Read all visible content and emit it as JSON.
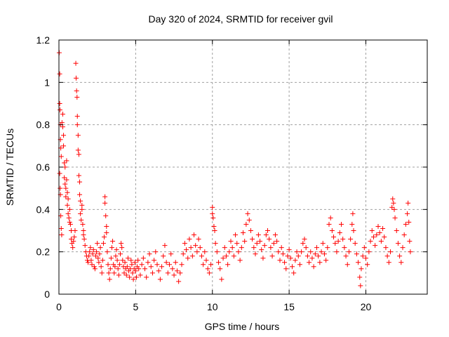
{
  "chart_data": {
    "type": "scatter",
    "title": "Day 320 of 2024, SRMTID for receiver gvil",
    "xlabel": "GPS time / hours",
    "ylabel": "SRMTID / TECUs",
    "xlim": [
      0,
      24
    ],
    "ylim": [
      0,
      1.2
    ],
    "xticks": [
      0,
      5,
      10,
      15,
      20
    ],
    "xtick_labels": [
      "0",
      "5",
      "10",
      "15",
      "20"
    ],
    "yticks": [
      0,
      0.2,
      0.4,
      0.6,
      0.8,
      1.0,
      1.2
    ],
    "ytick_labels": [
      "0",
      "0.2",
      "0.4",
      "0.6",
      "0.8",
      "1",
      "1.2"
    ],
    "grid": true,
    "marker": "+",
    "series": [
      {
        "name": "SRMTID",
        "color": "#ff0000",
        "points": [
          [
            0.02,
            1.14
          ],
          [
            0.05,
            1.04
          ],
          [
            0.05,
            0.9
          ],
          [
            0.07,
            0.87
          ],
          [
            0.1,
            0.8
          ],
          [
            0.1,
            0.73
          ],
          [
            0.12,
            0.69
          ],
          [
            0.15,
            0.65
          ],
          [
            0.05,
            0.57
          ],
          [
            0.08,
            0.5
          ],
          [
            0.1,
            0.47
          ],
          [
            0.12,
            0.37
          ],
          [
            0.15,
            0.31
          ],
          [
            0.18,
            0.28
          ],
          [
            0.2,
            0.81
          ],
          [
            0.25,
            0.85
          ],
          [
            0.25,
            0.79
          ],
          [
            0.3,
            0.75
          ],
          [
            0.3,
            0.7
          ],
          [
            0.35,
            0.62
          ],
          [
            0.35,
            0.55
          ],
          [
            0.4,
            0.6
          ],
          [
            0.4,
            0.52
          ],
          [
            0.45,
            0.5
          ],
          [
            0.45,
            0.46
          ],
          [
            0.5,
            0.54
          ],
          [
            0.5,
            0.63
          ],
          [
            0.55,
            0.48
          ],
          [
            0.55,
            0.42
          ],
          [
            0.6,
            0.45
          ],
          [
            0.6,
            0.38
          ],
          [
            0.65,
            0.36
          ],
          [
            0.7,
            0.34
          ],
          [
            0.7,
            0.4
          ],
          [
            0.75,
            0.33
          ],
          [
            0.8,
            0.3
          ],
          [
            0.8,
            0.26
          ],
          [
            0.85,
            0.24
          ],
          [
            0.9,
            0.22
          ],
          [
            0.95,
            0.25
          ],
          [
            1.0,
            0.27
          ],
          [
            1.05,
            0.3
          ],
          [
            1.1,
            1.09
          ],
          [
            1.12,
            1.02
          ],
          [
            1.15,
            0.96
          ],
          [
            1.18,
            0.93
          ],
          [
            1.2,
            0.84
          ],
          [
            1.2,
            0.8
          ],
          [
            1.25,
            0.75
          ],
          [
            1.25,
            0.68
          ],
          [
            1.3,
            0.66
          ],
          [
            1.3,
            0.56
          ],
          [
            1.35,
            0.53
          ],
          [
            1.35,
            0.47
          ],
          [
            1.4,
            0.44
          ],
          [
            1.4,
            0.38
          ],
          [
            1.45,
            0.35
          ],
          [
            1.5,
            0.4
          ],
          [
            1.5,
            0.42
          ],
          [
            1.55,
            0.33
          ],
          [
            1.6,
            0.28
          ],
          [
            1.6,
            0.3
          ],
          [
            1.65,
            0.26
          ],
          [
            1.7,
            0.23
          ],
          [
            1.75,
            0.2
          ],
          [
            1.8,
            0.18
          ],
          [
            1.85,
            0.16
          ],
          [
            1.9,
            0.15
          ],
          [
            1.95,
            0.18
          ],
          [
            2.0,
            0.2
          ],
          [
            2.05,
            0.22
          ],
          [
            2.1,
            0.16
          ],
          [
            2.15,
            0.14
          ],
          [
            2.2,
            0.19
          ],
          [
            2.25,
            0.21
          ],
          [
            2.3,
            0.13
          ],
          [
            2.35,
            0.12
          ],
          [
            2.4,
            0.18
          ],
          [
            2.45,
            0.2
          ],
          [
            2.5,
            0.24
          ],
          [
            2.55,
            0.17
          ],
          [
            2.6,
            0.15
          ],
          [
            2.65,
            0.19
          ],
          [
            2.7,
            0.22
          ],
          [
            2.75,
            0.13
          ],
          [
            2.8,
            0.1
          ],
          [
            2.85,
            0.16
          ],
          [
            2.9,
            0.24
          ],
          [
            2.95,
            0.27
          ],
          [
            3.0,
            0.46
          ],
          [
            3.0,
            0.43
          ],
          [
            3.05,
            0.37
          ],
          [
            3.1,
            0.32
          ],
          [
            3.1,
            0.29
          ],
          [
            3.15,
            0.2
          ],
          [
            3.2,
            0.14
          ],
          [
            3.25,
            0.1
          ],
          [
            3.3,
            0.07
          ],
          [
            3.35,
            0.12
          ],
          [
            3.4,
            0.17
          ],
          [
            3.45,
            0.22
          ],
          [
            3.5,
            0.25
          ],
          [
            3.55,
            0.14
          ],
          [
            3.6,
            0.1
          ],
          [
            3.65,
            0.13
          ],
          [
            3.7,
            0.18
          ],
          [
            3.75,
            0.21
          ],
          [
            3.8,
            0.16
          ],
          [
            3.85,
            0.12
          ],
          [
            3.9,
            0.09
          ],
          [
            3.95,
            0.14
          ],
          [
            4.0,
            0.19
          ],
          [
            4.05,
            0.24
          ],
          [
            4.1,
            0.22
          ],
          [
            4.15,
            0.16
          ],
          [
            4.2,
            0.13
          ],
          [
            4.25,
            0.1
          ],
          [
            4.3,
            0.15
          ],
          [
            4.35,
            0.12
          ],
          [
            4.4,
            0.09
          ],
          [
            4.45,
            0.13
          ],
          [
            4.5,
            0.17
          ],
          [
            4.55,
            0.11
          ],
          [
            4.6,
            0.08
          ],
          [
            4.65,
            0.12
          ],
          [
            4.7,
            0.16
          ],
          [
            4.75,
            0.14
          ],
          [
            4.8,
            0.1
          ],
          [
            4.85,
            0.07
          ],
          [
            4.9,
            0.12
          ],
          [
            4.95,
            0.15
          ],
          [
            5.0,
            0.11
          ],
          [
            5.05,
            0.08
          ],
          [
            5.1,
            0.13
          ],
          [
            5.15,
            0.16
          ],
          [
            5.2,
            0.12
          ],
          [
            5.3,
            0.09
          ],
          [
            5.4,
            0.14
          ],
          [
            5.5,
            0.17
          ],
          [
            5.6,
            0.12
          ],
          [
            5.7,
            0.08
          ],
          [
            5.8,
            0.15
          ],
          [
            5.9,
            0.19
          ],
          [
            6.0,
            0.13
          ],
          [
            6.1,
            0.1
          ],
          [
            6.2,
            0.16
          ],
          [
            6.3,
            0.2
          ],
          [
            6.4,
            0.14
          ],
          [
            6.5,
            0.11
          ],
          [
            6.6,
            0.07
          ],
          [
            6.7,
            0.13
          ],
          [
            6.8,
            0.18
          ],
          [
            6.9,
            0.23
          ],
          [
            7.0,
            0.15
          ],
          [
            7.1,
            0.1
          ],
          [
            7.2,
            0.14
          ],
          [
            7.3,
            0.19
          ],
          [
            7.4,
            0.12
          ],
          [
            7.5,
            0.09
          ],
          [
            7.6,
            0.15
          ],
          [
            7.7,
            0.11
          ],
          [
            7.8,
            0.06
          ],
          [
            7.9,
            0.1
          ],
          [
            8.0,
            0.14
          ],
          [
            8.1,
            0.19
          ],
          [
            8.2,
            0.24
          ],
          [
            8.3,
            0.21
          ],
          [
            8.4,
            0.17
          ],
          [
            8.5,
            0.26
          ],
          [
            8.6,
            0.22
          ],
          [
            8.7,
            0.18
          ],
          [
            8.8,
            0.28
          ],
          [
            8.9,
            0.23
          ],
          [
            9.0,
            0.2
          ],
          [
            9.1,
            0.26
          ],
          [
            9.2,
            0.22
          ],
          [
            9.3,
            0.18
          ],
          [
            9.4,
            0.14
          ],
          [
            9.5,
            0.2
          ],
          [
            9.6,
            0.16
          ],
          [
            9.7,
            0.12
          ],
          [
            9.8,
            0.1
          ],
          [
            9.9,
            0.14
          ],
          [
            10.0,
            0.38
          ],
          [
            10.0,
            0.41
          ],
          [
            10.05,
            0.36
          ],
          [
            10.1,
            0.32
          ],
          [
            10.15,
            0.3
          ],
          [
            10.2,
            0.24
          ],
          [
            10.3,
            0.2
          ],
          [
            10.4,
            0.15
          ],
          [
            10.5,
            0.12
          ],
          [
            10.6,
            0.07
          ],
          [
            10.7,
            0.17
          ],
          [
            10.8,
            0.22
          ],
          [
            10.9,
            0.18
          ],
          [
            11.0,
            0.14
          ],
          [
            11.1,
            0.2
          ],
          [
            11.2,
            0.25
          ],
          [
            11.3,
            0.22
          ],
          [
            11.4,
            0.18
          ],
          [
            11.5,
            0.28
          ],
          [
            11.6,
            0.24
          ],
          [
            11.7,
            0.2
          ],
          [
            11.8,
            0.16
          ],
          [
            11.9,
            0.22
          ],
          [
            12.0,
            0.29
          ],
          [
            12.1,
            0.25
          ],
          [
            12.2,
            0.33
          ],
          [
            12.3,
            0.38
          ],
          [
            12.4,
            0.35
          ],
          [
            12.5,
            0.3
          ],
          [
            12.6,
            0.26
          ],
          [
            12.7,
            0.22
          ],
          [
            12.8,
            0.19
          ],
          [
            12.9,
            0.24
          ],
          [
            13.0,
            0.28
          ],
          [
            13.1,
            0.25
          ],
          [
            13.2,
            0.21
          ],
          [
            13.3,
            0.17
          ],
          [
            13.4,
            0.23
          ],
          [
            13.5,
            0.28
          ],
          [
            13.6,
            0.3
          ],
          [
            13.7,
            0.26
          ],
          [
            13.8,
            0.22
          ],
          [
            13.9,
            0.18
          ],
          [
            14.0,
            0.24
          ],
          [
            14.1,
            0.28
          ],
          [
            14.2,
            0.25
          ],
          [
            14.3,
            0.2
          ],
          [
            14.4,
            0.16
          ],
          [
            14.5,
            0.22
          ],
          [
            14.6,
            0.19
          ],
          [
            14.7,
            0.15
          ],
          [
            14.8,
            0.12
          ],
          [
            14.9,
            0.18
          ],
          [
            15.0,
            0.21
          ],
          [
            15.1,
            0.17
          ],
          [
            15.2,
            0.13
          ],
          [
            15.3,
            0.1
          ],
          [
            15.4,
            0.16
          ],
          [
            15.5,
            0.2
          ],
          [
            15.6,
            0.18
          ],
          [
            15.7,
            0.14
          ],
          [
            15.8,
            0.2
          ],
          [
            15.9,
            0.24
          ],
          [
            16.0,
            0.26
          ],
          [
            16.1,
            0.22
          ],
          [
            16.2,
            0.18
          ],
          [
            16.3,
            0.15
          ],
          [
            16.4,
            0.2
          ],
          [
            16.5,
            0.17
          ],
          [
            16.6,
            0.13
          ],
          [
            16.7,
            0.19
          ],
          [
            16.8,
            0.22
          ],
          [
            16.9,
            0.18
          ],
          [
            17.0,
            0.15
          ],
          [
            17.1,
            0.2
          ],
          [
            17.2,
            0.24
          ],
          [
            17.3,
            0.19
          ],
          [
            17.4,
            0.16
          ],
          [
            17.5,
            0.22
          ],
          [
            17.6,
            0.33
          ],
          [
            17.7,
            0.36
          ],
          [
            17.8,
            0.3
          ],
          [
            17.9,
            0.27
          ],
          [
            18.0,
            0.24
          ],
          [
            18.1,
            0.2
          ],
          [
            18.2,
            0.25
          ],
          [
            18.3,
            0.29
          ],
          [
            18.4,
            0.33
          ],
          [
            18.5,
            0.26
          ],
          [
            18.6,
            0.22
          ],
          [
            18.7,
            0.18
          ],
          [
            18.8,
            0.14
          ],
          [
            18.9,
            0.2
          ],
          [
            19.0,
            0.26
          ],
          [
            19.1,
            0.33
          ],
          [
            19.15,
            0.38
          ],
          [
            19.2,
            0.3
          ],
          [
            19.3,
            0.24
          ],
          [
            19.4,
            0.19
          ],
          [
            19.5,
            0.15
          ],
          [
            19.6,
            0.08
          ],
          [
            19.65,
            0.04
          ],
          [
            19.7,
            0.12
          ],
          [
            19.8,
            0.18
          ],
          [
            19.9,
            0.22
          ],
          [
            20.0,
            0.17
          ],
          [
            20.1,
            0.14
          ],
          [
            20.2,
            0.2
          ],
          [
            20.3,
            0.25
          ],
          [
            20.4,
            0.3
          ],
          [
            20.5,
            0.27
          ],
          [
            20.6,
            0.23
          ],
          [
            20.7,
            0.28
          ],
          [
            20.8,
            0.32
          ],
          [
            20.9,
            0.29
          ],
          [
            21.0,
            0.25
          ],
          [
            21.1,
            0.31
          ],
          [
            21.2,
            0.27
          ],
          [
            21.3,
            0.22
          ],
          [
            21.4,
            0.18
          ],
          [
            21.5,
            0.15
          ],
          [
            21.6,
            0.2
          ],
          [
            21.7,
            0.41
          ],
          [
            21.75,
            0.45
          ],
          [
            21.8,
            0.43
          ],
          [
            21.85,
            0.4
          ],
          [
            21.9,
            0.36
          ],
          [
            22.0,
            0.3
          ],
          [
            22.1,
            0.24
          ],
          [
            22.2,
            0.18
          ],
          [
            22.3,
            0.15
          ],
          [
            22.4,
            0.22
          ],
          [
            22.5,
            0.28
          ],
          [
            22.6,
            0.33
          ],
          [
            22.7,
            0.38
          ],
          [
            22.75,
            0.43
          ],
          [
            22.8,
            0.34
          ],
          [
            22.85,
            0.25
          ],
          [
            22.9,
            0.2
          ]
        ]
      }
    ]
  }
}
